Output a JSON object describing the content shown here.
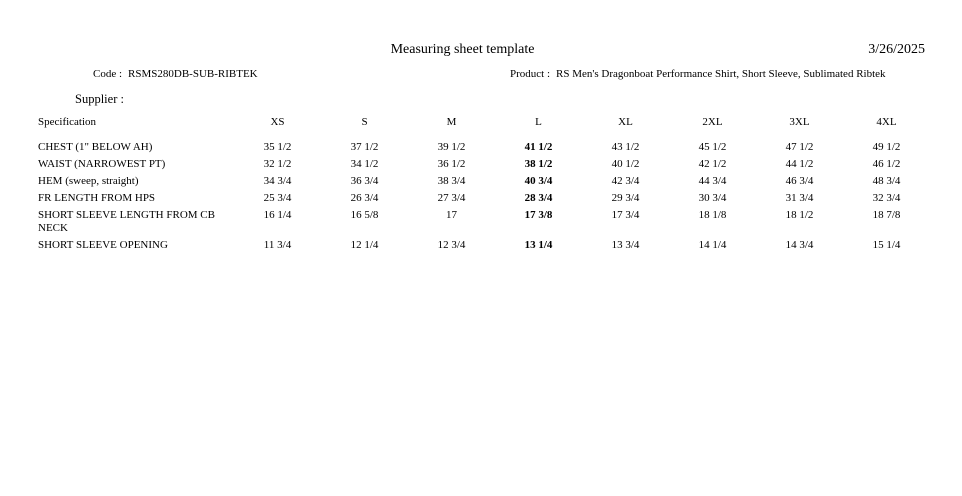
{
  "header": {
    "title": "Measuring sheet template",
    "date": "3/26/2025"
  },
  "meta": {
    "code_label": "Code :",
    "code_value": "RSMS280DB-SUB-RIBTEK",
    "product_label": "Product :",
    "product_value": "RS Men's Dragonboat Performance Shirt, Short Sleeve, Sublimated Ribtek",
    "supplier_label": "Supplier :",
    "supplier_value": ""
  },
  "table": {
    "spec_header": "Specification",
    "size_headers": [
      "XS",
      "S",
      "M",
      "L",
      "XL",
      "2XL",
      "3XL",
      "4XL"
    ],
    "emphasized_size": "L",
    "rows": [
      {
        "spec": "CHEST (1\" BELOW AH)",
        "values": [
          "35 1/2",
          "37 1/2",
          "39 1/2",
          "41 1/2",
          "43 1/2",
          "45 1/2",
          "47 1/2",
          "49 1/2"
        ]
      },
      {
        "spec": "WAIST (NARROWEST PT)",
        "values": [
          "32 1/2",
          "34 1/2",
          "36 1/2",
          "38 1/2",
          "40 1/2",
          "42 1/2",
          "44 1/2",
          "46 1/2"
        ]
      },
      {
        "spec": "HEM (sweep, straight)",
        "values": [
          "34 3/4",
          "36 3/4",
          "38 3/4",
          "40 3/4",
          "42 3/4",
          "44 3/4",
          "46 3/4",
          "48 3/4"
        ]
      },
      {
        "spec": "FR LENGTH FROM HPS",
        "values": [
          "25 3/4",
          "26 3/4",
          "27 3/4",
          "28 3/4",
          "29 3/4",
          "30 3/4",
          "31 3/4",
          "32 3/4"
        ]
      },
      {
        "spec": "SHORT SLEEVE LENGTH FROM CB NECK",
        "values": [
          "16 1/4",
          "16 5/8",
          "17",
          "17 3/8",
          "17 3/4",
          "18 1/8",
          "18 1/2",
          "18 7/8"
        ]
      },
      {
        "spec": "SHORT SLEEVE OPENING",
        "values": [
          "11 3/4",
          "12 1/4",
          "12 3/4",
          "13 1/4",
          "13 3/4",
          "14 1/4",
          "14 3/4",
          "15 1/4"
        ]
      }
    ]
  },
  "colors": {
    "text": "#000000",
    "background": "#ffffff"
  }
}
